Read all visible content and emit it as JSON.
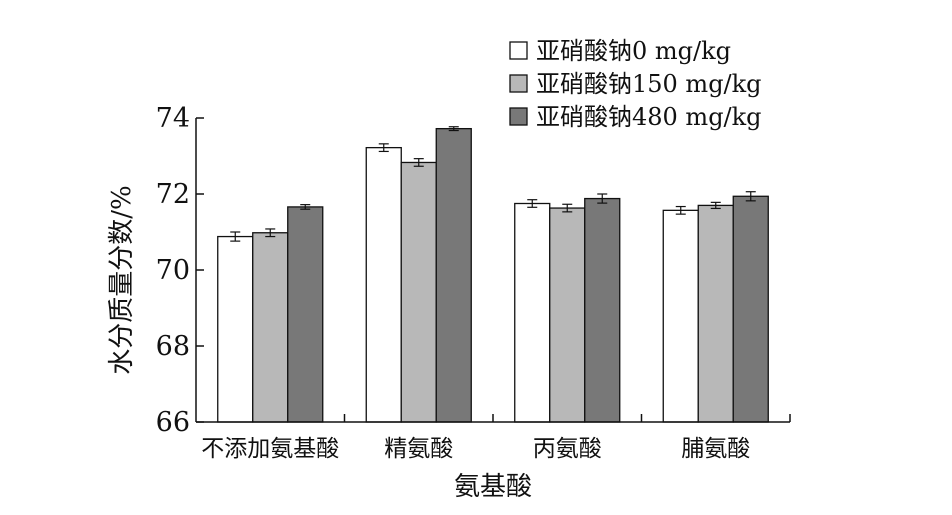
{
  "chart_data": {
    "type": "bar",
    "categories": [
      "不添加氨基酸",
      "精氨酸",
      "丙氨酸",
      "脯氨酸"
    ],
    "series": [
      {
        "name": "亚硝酸钠0 mg/kg",
        "color": "#ffffff",
        "values": [
          70.88,
          73.22,
          71.75,
          71.57
        ],
        "errors": [
          0.12,
          0.1,
          0.1,
          0.1
        ]
      },
      {
        "name": "亚硝酸钠150 mg/kg",
        "color": "#b8b8b8",
        "values": [
          70.98,
          72.83,
          71.63,
          71.7
        ],
        "errors": [
          0.1,
          0.1,
          0.1,
          0.08
        ]
      },
      {
        "name": "亚硝酸钠480 mg/kg",
        "color": "#787878",
        "values": [
          71.66,
          73.72,
          71.88,
          71.94
        ],
        "errors": [
          0.06,
          0.05,
          0.12,
          0.12
        ]
      }
    ],
    "xlabel": "氨基酸",
    "ylabel": "水分质量分数/%",
    "ylim": [
      66,
      74
    ],
    "yticks": [
      "66",
      "68",
      "70",
      "72",
      "74"
    ],
    "legend_position": "top-right",
    "grid": false
  }
}
